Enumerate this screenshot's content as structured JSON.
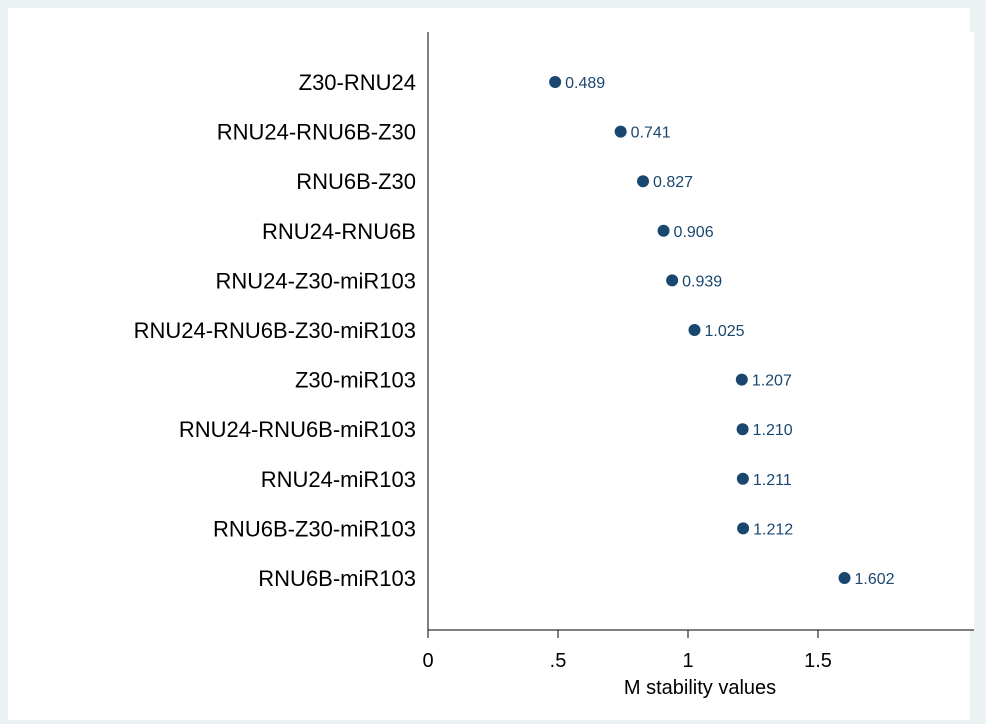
{
  "chart_data": {
    "type": "scatter",
    "orientation": "horizontal-dot",
    "categories": [
      "Z30-RNU24",
      "RNU24-RNU6B-Z30",
      "RNU6B-Z30",
      "RNU24-RNU6B",
      "RNU24-Z30-miR103",
      "RNU24-RNU6B-Z30-miR103",
      "Z30-miR103",
      "RNU24-RNU6B-miR103",
      "RNU24-miR103",
      "RNU6B-Z30-miR103",
      "RNU6B-miR103"
    ],
    "values": [
      0.489,
      0.741,
      0.827,
      0.906,
      0.939,
      1.025,
      1.207,
      1.21,
      1.211,
      1.212,
      1.602
    ],
    "value_labels": [
      "0.489",
      "0.741",
      "0.827",
      "0.906",
      "0.939",
      "1.025",
      "1.207",
      "1.210",
      "1.211",
      "1.212",
      "1.602"
    ],
    "xlabel": "M stability values",
    "ylabel": "",
    "xlim": [
      0,
      2.1
    ],
    "xticks": [
      0,
      0.5,
      1,
      1.5
    ],
    "xtick_labels": [
      "0",
      ".5",
      "1",
      "1.5"
    ],
    "grid": false,
    "colors": {
      "background": "#eaf2f3",
      "plot_area": "#ffffff",
      "marker": "#1a476f",
      "label_text": "#1a476f",
      "axis": "#000000"
    }
  }
}
